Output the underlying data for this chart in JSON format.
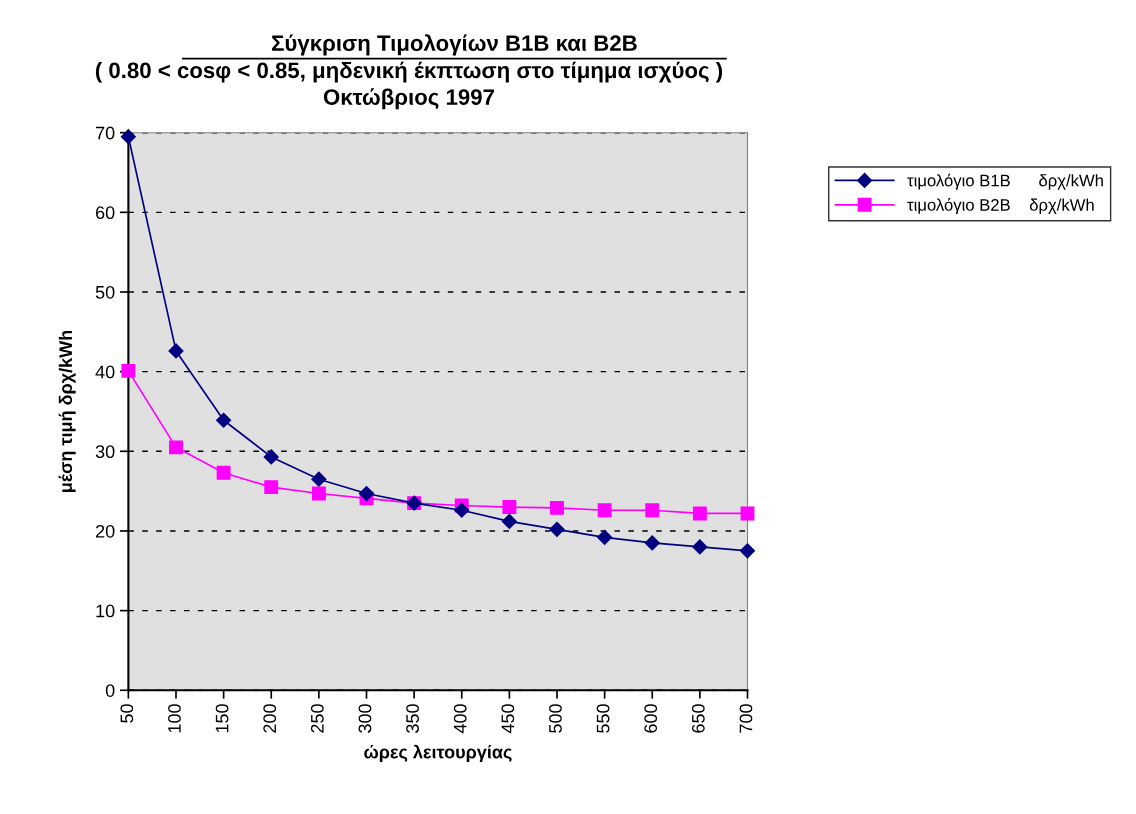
{
  "chart_data": {
    "type": "line",
    "title": "Σύγκριση Τιμολογίων B1B και B2B",
    "subtitle": "( 0.80 < cosφ < 0.85, μηδενική έκπτωση στο τίμημα ισχύος )\nΟκτώβριος 1997",
    "xlabel": "ώρες λειτουργίας",
    "ylabel": "μέση τιμή δρχ/kWh",
    "categories": [
      "50",
      "100",
      "150",
      "200",
      "250",
      "300",
      "350",
      "400",
      "450",
      "500",
      "550",
      "600",
      "650",
      "700"
    ],
    "series": [
      {
        "name": "τιμολόγιο B1B      δρχ/kWh",
        "color": "#000080",
        "marker": "diamond",
        "values": [
          69.5,
          42.6,
          33.9,
          29.3,
          26.5,
          24.7,
          23.5,
          22.6,
          21.2,
          20.2,
          19.2,
          18.5,
          18.0,
          17.5
        ]
      },
      {
        "name": "τιμολόγιο B2B    δρχ/kWh",
        "color": "#ff00ff",
        "marker": "square",
        "values": [
          40.1,
          30.5,
          27.3,
          25.5,
          24.7,
          24.1,
          23.5,
          23.2,
          23.0,
          22.9,
          22.6,
          22.6,
          22.2,
          22.2
        ]
      }
    ],
    "ylim": [
      0,
      70
    ],
    "yticks": [
      0,
      10,
      20,
      30,
      40,
      50,
      60,
      70
    ],
    "grid": "y",
    "legend": "top right",
    "line_style": "solid"
  }
}
